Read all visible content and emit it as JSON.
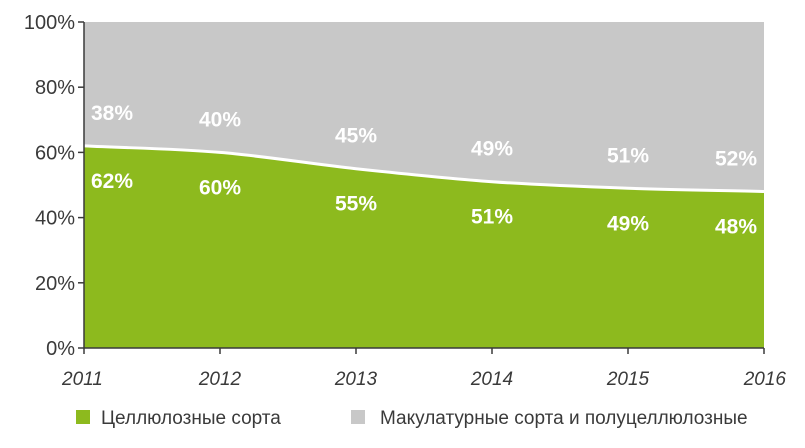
{
  "chart_data": {
    "type": "area",
    "stacked": true,
    "x": [
      "2011",
      "2012",
      "2013",
      "2014",
      "2015",
      "2016"
    ],
    "series": [
      {
        "name": "Целлюлозные сорта",
        "values": [
          62,
          60,
          55,
          51,
          49,
          48
        ],
        "labels": [
          "62%",
          "60%",
          "55%",
          "51%",
          "49%",
          "48%"
        ],
        "color": "#8dba1e"
      },
      {
        "name": "Макулатурные сорта и полуцеллюлозные",
        "values": [
          38,
          40,
          45,
          49,
          51,
          52
        ],
        "labels": [
          "38%",
          "40%",
          "45%",
          "49%",
          "51%",
          "52%"
        ],
        "color": "#c8c8c8"
      }
    ],
    "ylim": [
      0,
      100
    ],
    "yticks": [
      "0%",
      "20%",
      "40%",
      "60%",
      "80%",
      "100%"
    ],
    "ytick_values": [
      0,
      20,
      40,
      60,
      80,
      100
    ],
    "grid": false,
    "legend_position": "bottom"
  }
}
